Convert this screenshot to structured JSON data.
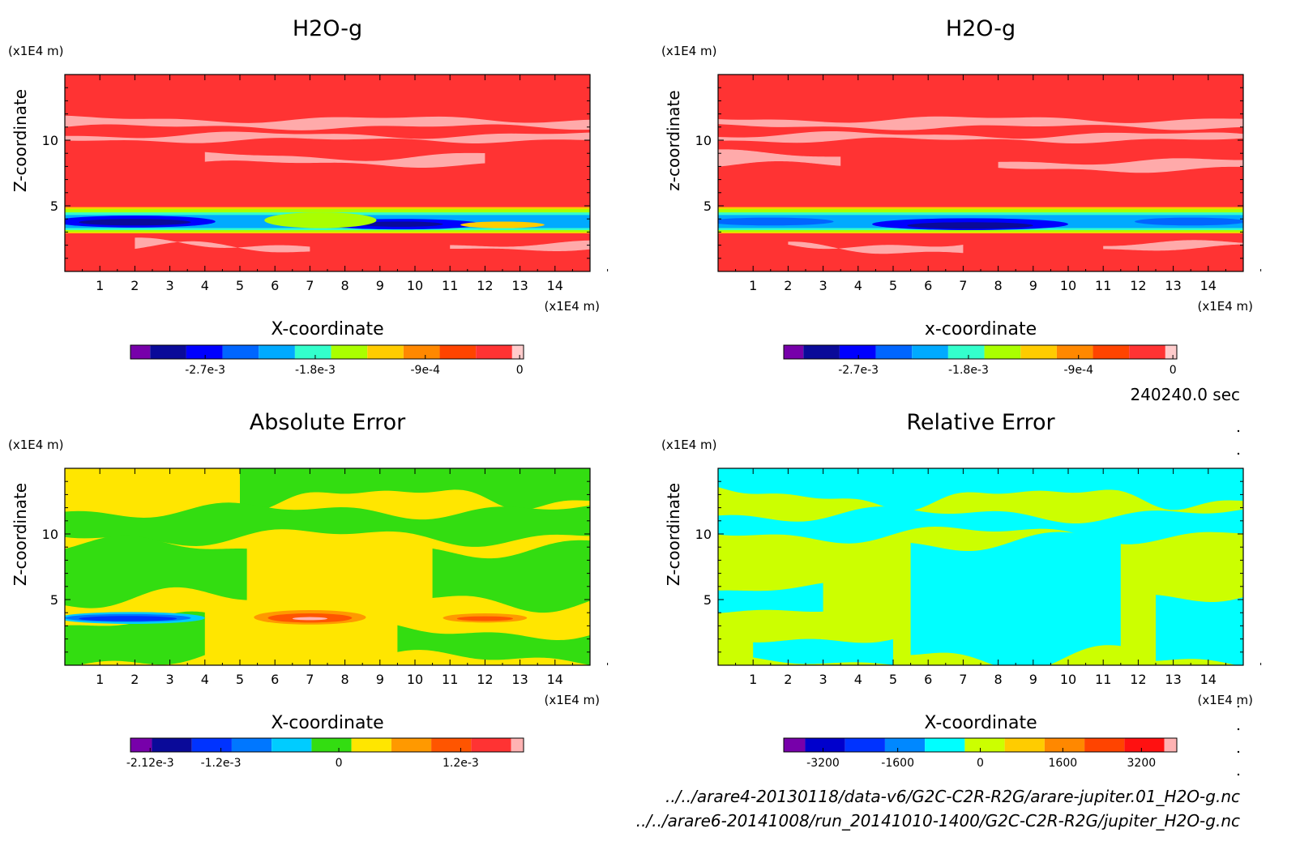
{
  "time_label": "240240.0 sec",
  "files": [
    "../../arare4-20130118/data-v6/G2C-C2R-R2G/arare-jupiter.01_H2O-g.nc",
    "../../arare6-20141008/run_20141010-1400/G2C-C2R-R2G/jupiter_H2O-g.nc"
  ],
  "colors": {
    "red": "#ff3333",
    "pink": "#ffb3b3",
    "yellow": "#ffe600",
    "green": "#33dd11",
    "lime": "#ccff00",
    "cyan": "#00ffff",
    "blue_light": "#0099ff",
    "blue": "#0033ff",
    "navy": "#0000aa",
    "purple": "#7700aa",
    "orange": "#ff9900",
    "orangered": "#ff5500"
  },
  "chart_data": [
    {
      "type": "heatmap",
      "title": "H2O-g",
      "xlabel": "X-coordinate",
      "ylabel": "Z-coordinate",
      "x_unit": "(x1E4 m)",
      "y_unit": "(x1E4 m)",
      "xlim": [
        0,
        15
      ],
      "ylim": [
        0,
        15
      ],
      "x_ticks": [
        1,
        2,
        3,
        4,
        5,
        6,
        7,
        8,
        9,
        10,
        11,
        12,
        13,
        14
      ],
      "y_ticks": [
        5,
        10
      ],
      "colorbar": {
        "colors": [
          "#7700aa",
          "#0a0a99",
          "#0000ff",
          "#0066ff",
          "#00aaff",
          "#33ffcc",
          "#aaff00",
          "#ffcc00",
          "#ff8800",
          "#ff4400",
          "#ff3333",
          "#ffcccc"
        ],
        "tick_labels": [
          "-2.7e-3",
          "-1.8e-3",
          "-9e-4",
          "0"
        ]
      }
    },
    {
      "type": "heatmap",
      "title": "H2O-g",
      "xlabel": "x-coordinate",
      "ylabel": "z-coordinate",
      "x_unit": "(x1E4 m)",
      "y_unit": "(x1E4 m)",
      "xlim": [
        0,
        15
      ],
      "ylim": [
        0,
        15
      ],
      "x_ticks": [
        1,
        2,
        3,
        4,
        5,
        6,
        7,
        8,
        9,
        10,
        11,
        12,
        13,
        14
      ],
      "y_ticks": [
        5,
        10
      ],
      "colorbar": {
        "colors": [
          "#7700aa",
          "#0a0a99",
          "#0000ff",
          "#0066ff",
          "#00aaff",
          "#33ffcc",
          "#aaff00",
          "#ffcc00",
          "#ff8800",
          "#ff4400",
          "#ff3333",
          "#ffcccc"
        ],
        "tick_labels": [
          "-2.7e-3",
          "-1.8e-3",
          "-9e-4",
          "0"
        ]
      }
    },
    {
      "type": "heatmap",
      "title": "Absolute Error",
      "xlabel": "X-coordinate",
      "ylabel": "Z-coordinate",
      "x_unit": "(x1E4 m)",
      "y_unit": "(x1E4 m)",
      "xlim": [
        0,
        15
      ],
      "ylim": [
        0,
        15
      ],
      "x_ticks": [
        1,
        2,
        3,
        4,
        5,
        6,
        7,
        8,
        9,
        10,
        11,
        12,
        13,
        14
      ],
      "y_ticks": [
        5,
        10
      ],
      "colorbar": {
        "colors": [
          "#7700aa",
          "#0a0a99",
          "#0033ff",
          "#0077ff",
          "#00ccff",
          "#33dd11",
          "#ffe600",
          "#ff9900",
          "#ff5500",
          "#ff3333",
          "#ffb3b3"
        ],
        "tick_labels": [
          "-2.12e-3",
          "-1.2e-3",
          "0",
          "1.2e-3"
        ]
      }
    },
    {
      "type": "heatmap",
      "title": "Relative Error",
      "xlabel": "X-coordinate",
      "ylabel": "Z-coordinate",
      "x_unit": "(x1E4 m)",
      "y_unit": "(x1E4 m)",
      "xlim": [
        0,
        15
      ],
      "ylim": [
        0,
        15
      ],
      "x_ticks": [
        1,
        2,
        3,
        4,
        5,
        6,
        7,
        8,
        9,
        10,
        11,
        12,
        13,
        14
      ],
      "y_ticks": [
        5,
        10
      ],
      "colorbar": {
        "colors": [
          "#7700aa",
          "#0000cc",
          "#0033ff",
          "#0088ff",
          "#00ffff",
          "#ccff00",
          "#ffcc00",
          "#ff8800",
          "#ff4400",
          "#ff1111",
          "#ffb3b3"
        ],
        "tick_labels": [
          "-3200",
          "-1600",
          "0",
          "1600",
          "3200"
        ]
      }
    }
  ]
}
